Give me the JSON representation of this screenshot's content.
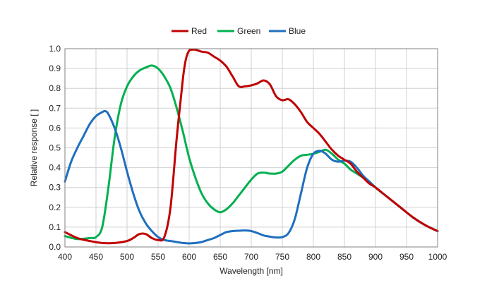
{
  "chart_data": {
    "type": "line",
    "xlabel": "Wavelength [nm]",
    "ylabel": "Relative response [ ]",
    "xlim": [
      400,
      1000
    ],
    "ylim": [
      0,
      1
    ],
    "x_ticks": [
      "400",
      "450",
      "500",
      "550",
      "600",
      "650",
      "700",
      "750",
      "800",
      "850",
      "900",
      "950",
      "1000"
    ],
    "y_ticks": [
      "0.0",
      "0.1",
      "0.2",
      "0.3",
      "0.4",
      "0.5",
      "0.6",
      "0.7",
      "0.8",
      "0.9",
      "1.0"
    ],
    "grid": true,
    "legend": {
      "placement": "top-center"
    },
    "series": [
      {
        "name": "Red",
        "color": "#c00000",
        "x": [
          400,
          420,
          440,
          460,
          480,
          500,
          510,
          520,
          530,
          540,
          550,
          560,
          570,
          580,
          590,
          595,
          600,
          605,
          610,
          620,
          630,
          640,
          650,
          660,
          670,
          680,
          690,
          700,
          710,
          720,
          730,
          740,
          750,
          760,
          770,
          780,
          790,
          800,
          810,
          820,
          830,
          840,
          850,
          860,
          870,
          880,
          890,
          900,
          920,
          940,
          960,
          980,
          1000
        ],
        "y": [
          0.075,
          0.045,
          0.03,
          0.02,
          0.02,
          0.03,
          0.045,
          0.065,
          0.065,
          0.045,
          0.035,
          0.05,
          0.2,
          0.55,
          0.85,
          0.95,
          0.99,
          0.995,
          0.995,
          0.985,
          0.98,
          0.96,
          0.94,
          0.91,
          0.86,
          0.81,
          0.81,
          0.815,
          0.825,
          0.84,
          0.82,
          0.76,
          0.74,
          0.745,
          0.72,
          0.68,
          0.63,
          0.6,
          0.57,
          0.53,
          0.49,
          0.46,
          0.44,
          0.42,
          0.38,
          0.35,
          0.32,
          0.3,
          0.25,
          0.2,
          0.15,
          0.11,
          0.08
        ]
      },
      {
        "name": "Green",
        "color": "#00b050",
        "x": [
          400,
          420,
          440,
          450,
          460,
          470,
          480,
          490,
          500,
          510,
          520,
          530,
          540,
          550,
          560,
          570,
          580,
          590,
          600,
          610,
          620,
          630,
          640,
          650,
          660,
          670,
          680,
          690,
          700,
          710,
          720,
          730,
          740,
          750,
          760,
          770,
          780,
          790,
          800,
          810,
          820,
          830,
          840,
          850,
          860,
          870,
          880,
          890,
          900,
          920,
          940,
          960,
          980,
          1000
        ],
        "y": [
          0.055,
          0.04,
          0.045,
          0.05,
          0.1,
          0.3,
          0.55,
          0.72,
          0.81,
          0.86,
          0.89,
          0.905,
          0.915,
          0.9,
          0.86,
          0.8,
          0.7,
          0.58,
          0.45,
          0.35,
          0.27,
          0.22,
          0.19,
          0.175,
          0.19,
          0.22,
          0.26,
          0.3,
          0.34,
          0.37,
          0.375,
          0.37,
          0.37,
          0.38,
          0.41,
          0.44,
          0.46,
          0.465,
          0.47,
          0.48,
          0.49,
          0.47,
          0.44,
          0.42,
          0.39,
          0.37,
          0.35,
          0.33,
          0.3,
          0.25,
          0.2,
          0.15,
          0.11,
          0.08
        ]
      },
      {
        "name": "Blue",
        "color": "#1f6fbf",
        "x": [
          400,
          410,
          420,
          430,
          440,
          450,
          460,
          465,
          470,
          480,
          490,
          500,
          510,
          520,
          530,
          540,
          550,
          560,
          570,
          580,
          590,
          600,
          610,
          620,
          630,
          640,
          650,
          660,
          670,
          680,
          690,
          700,
          710,
          720,
          730,
          740,
          750,
          760,
          770,
          780,
          790,
          800,
          810,
          815,
          820,
          830,
          840,
          850,
          860,
          870,
          880,
          890,
          900,
          920,
          940,
          960,
          980,
          1000
        ],
        "y": [
          0.33,
          0.43,
          0.5,
          0.56,
          0.62,
          0.66,
          0.68,
          0.685,
          0.67,
          0.6,
          0.5,
          0.38,
          0.27,
          0.18,
          0.12,
          0.08,
          0.05,
          0.035,
          0.03,
          0.025,
          0.02,
          0.018,
          0.02,
          0.025,
          0.035,
          0.045,
          0.06,
          0.075,
          0.08,
          0.082,
          0.083,
          0.08,
          0.07,
          0.058,
          0.052,
          0.048,
          0.05,
          0.07,
          0.14,
          0.27,
          0.4,
          0.47,
          0.485,
          0.48,
          0.47,
          0.44,
          0.43,
          0.435,
          0.43,
          0.4,
          0.36,
          0.33,
          0.3,
          0.25,
          0.2,
          0.15,
          0.11,
          0.08
        ]
      }
    ]
  }
}
